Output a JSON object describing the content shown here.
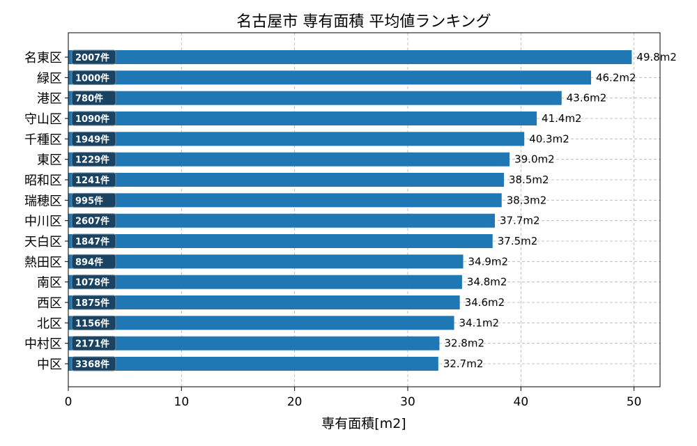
{
  "chart_data": {
    "type": "bar",
    "orientation": "horizontal",
    "title": "名古屋市 専有面積 平均値ランキング",
    "xlabel": "専有面積[m2]",
    "ylabel": "",
    "xlim": [
      0,
      52.3
    ],
    "xticks": [
      0,
      10,
      20,
      30,
      40,
      50
    ],
    "grid": true,
    "bar_color": "#1f77b4",
    "count_label_color": "#173a55",
    "categories": [
      "名東区",
      "緑区",
      "港区",
      "守山区",
      "千種区",
      "東区",
      "昭和区",
      "瑞穂区",
      "中川区",
      "天白区",
      "熱田区",
      "南区",
      "西区",
      "北区",
      "中村区",
      "中区"
    ],
    "values": [
      49.8,
      46.2,
      43.6,
      41.4,
      40.3,
      39.0,
      38.5,
      38.3,
      37.7,
      37.5,
      34.9,
      34.8,
      34.6,
      34.1,
      32.8,
      32.7
    ],
    "value_labels": [
      "49.8m2",
      "46.2m2",
      "43.6m2",
      "41.4m2",
      "40.3m2",
      "39.0m2",
      "38.5m2",
      "38.3m2",
      "37.7m2",
      "37.5m2",
      "34.9m2",
      "34.8m2",
      "34.6m2",
      "34.1m2",
      "32.8m2",
      "32.7m2"
    ],
    "count_labels": [
      "2007件",
      "1000件",
      "780件",
      "1090件",
      "1949件",
      "1229件",
      "1241件",
      "995件",
      "2607件",
      "1847件",
      "894件",
      "1078件",
      "1875件",
      "1156件",
      "2171件",
      "3368件"
    ]
  }
}
